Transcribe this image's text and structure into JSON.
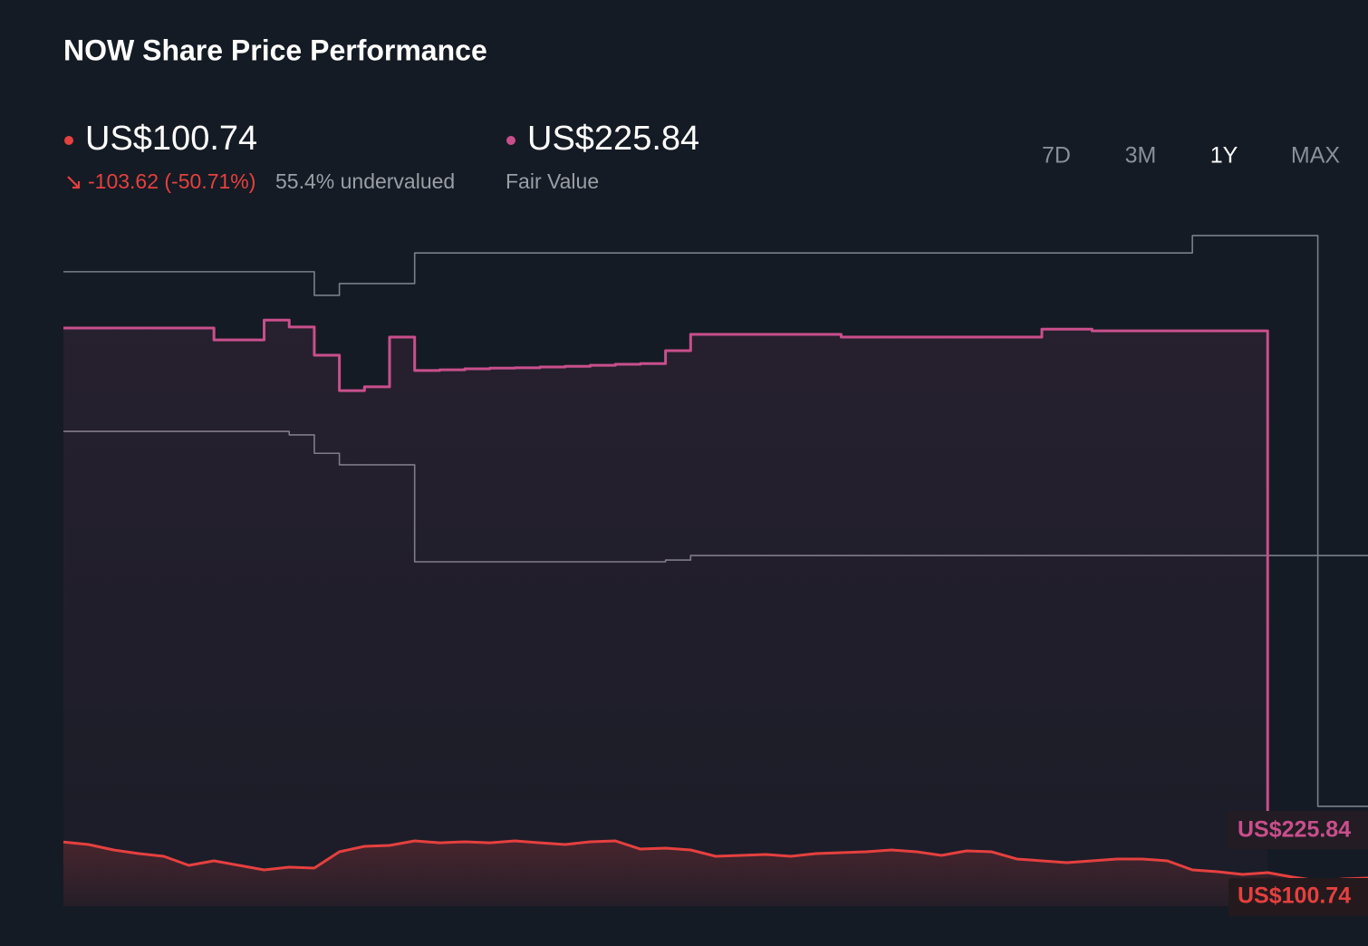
{
  "chart_data": {
    "type": "line",
    "title": "NOW Share Price Performance",
    "header": {
      "price": "US$100.74",
      "change": "-103.62 (-50.71%)",
      "undervalued": "55.4% undervalued",
      "fair_value": "US$225.84",
      "fair_value_caption": "Fair Value"
    },
    "ranges": [
      "7D",
      "3M",
      "1Y",
      "MAX"
    ],
    "selected_range": "1Y",
    "ylim": [
      20,
      2000
    ],
    "series": [
      {
        "color": "#7a7f88",
        "step": true,
        "area": false,
        "values": [
          1844,
          1844,
          1844,
          1844,
          1844,
          1844,
          1844,
          1844,
          1844,
          1844,
          1776,
          1810,
          1810,
          1810,
          1898,
          1898,
          1898,
          1898,
          1898,
          1898,
          1898,
          1898,
          1898,
          1898,
          1898,
          1898,
          1898,
          1898,
          1898,
          1898,
          1898,
          1898,
          1898,
          1898,
          1898,
          1898,
          1898,
          1898,
          1898,
          1898,
          1898,
          1898,
          1898,
          1898,
          1898,
          1948,
          1948,
          1948,
          1948,
          1948,
          307,
          307,
          307
        ]
      },
      {
        "color": "#7a7f88",
        "step": true,
        "area": false,
        "values": [
          1385,
          1385,
          1385,
          1385,
          1385,
          1385,
          1385,
          1385,
          1385,
          1375,
          1322,
          1289,
          1289,
          1289,
          1010,
          1010,
          1010,
          1010,
          1010,
          1010,
          1010,
          1010,
          1010,
          1010,
          1015,
          1028,
          1028,
          1028,
          1028,
          1028,
          1028,
          1028,
          1028,
          1028,
          1028,
          1028,
          1028,
          1028,
          1028,
          1028,
          1028,
          1028,
          1028,
          1028,
          1028,
          1028,
          1028,
          1028,
          1028,
          1028,
          1028,
          1028,
          1028
        ]
      },
      {
        "color": "#c94f8c",
        "step": true,
        "area": true,
        "values": [
          1682,
          1682,
          1682,
          1682,
          1682,
          1682,
          1648,
          1648,
          1705,
          1685,
          1604,
          1502,
          1513,
          1656,
          1560,
          1562,
          1565,
          1567,
          1568,
          1570,
          1572,
          1575,
          1578,
          1580,
          1617,
          1664,
          1664,
          1664,
          1664,
          1664,
          1664,
          1656,
          1656,
          1656,
          1656,
          1656,
          1656,
          1656,
          1656,
          1679,
          1679,
          1674,
          1674,
          1674,
          1674,
          1674,
          1674,
          1674,
          225.84,
          null,
          null,
          null,
          null
        ]
      },
      {
        "color": "#e5403f",
        "step": false,
        "area": true,
        "values": [
          204.36,
          197.1,
          181.5,
          171.1,
          163.3,
          137.2,
          150.3,
          137.2,
          124.2,
          132.0,
          129.4,
          176.3,
          191.9,
          194.5,
          207.6,
          202.0,
          205.0,
          202.0,
          207.6,
          202.0,
          197.1,
          205.0,
          207.6,
          184.1,
          186.7,
          181.5,
          163.3,
          165.9,
          168.5,
          163.3,
          171.1,
          173.7,
          176.3,
          181.5,
          176.3,
          165.9,
          178.9,
          176.3,
          155.5,
          150.3,
          145.0,
          150.3,
          155.5,
          155.5,
          150.3,
          124.2,
          119.0,
          111.2,
          116.4,
          103.4,
          92.9,
          98.0,
          100.74
        ]
      }
    ]
  }
}
